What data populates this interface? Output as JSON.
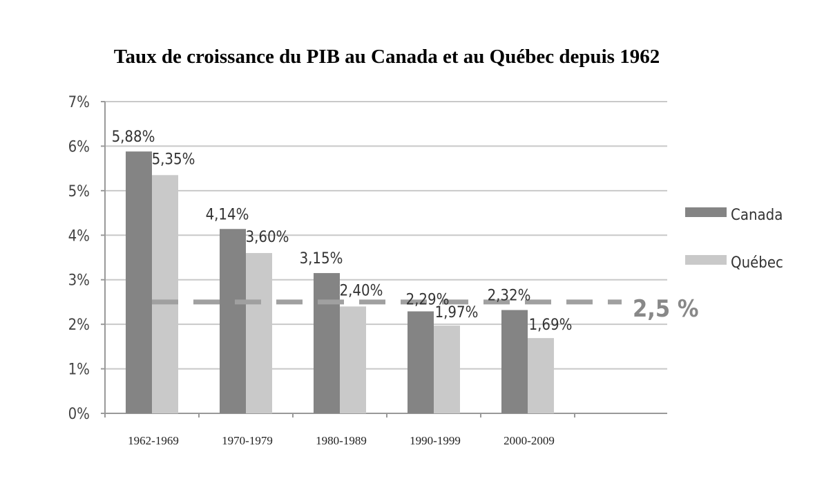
{
  "chart_data": {
    "type": "bar",
    "title": "Taux de croissance du PIB au Canada et au Québec depuis 1962",
    "categories": [
      "1962-1969",
      "1970-1979",
      "1980-1989",
      "1990-1999",
      "2000-2009"
    ],
    "series": [
      {
        "name": "Canada",
        "color": "#848484",
        "values": [
          5.88,
          4.14,
          3.15,
          2.29,
          2.32
        ],
        "labels": [
          "5,88%",
          "4,14%",
          "3,15%",
          "2,29%",
          "2,32%"
        ]
      },
      {
        "name": "Québec",
        "color": "#c9c9c9",
        "values": [
          5.35,
          3.6,
          2.4,
          1.97,
          1.69
        ],
        "labels": [
          "5,35%",
          "3,60%",
          "2,40%",
          "1,97%",
          "1,69%"
        ]
      }
    ],
    "yticks": [
      0,
      1,
      2,
      3,
      4,
      5,
      6,
      7
    ],
    "ytick_labels": [
      "0%",
      "1%",
      "2%",
      "3%",
      "4%",
      "5%",
      "6%",
      "7%"
    ],
    "ylim": [
      0,
      7
    ],
    "grid": true,
    "legend_position": "right",
    "reference_line": {
      "value": 2.5,
      "label": "2,5 %",
      "style": "dashed",
      "color": "#a0a0a0"
    }
  }
}
